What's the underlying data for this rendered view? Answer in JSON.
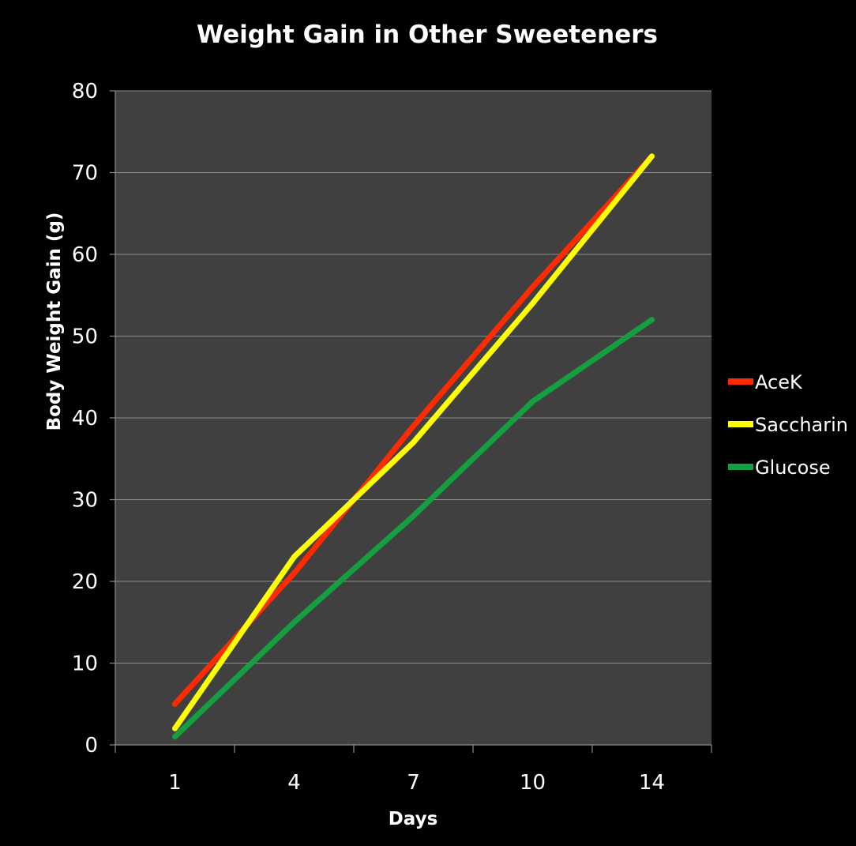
{
  "chart_data": {
    "type": "line",
    "title": "Weight Gain in Other Sweeteners",
    "xlabel": "Days",
    "ylabel": "Body Weight Gain (g)",
    "categories": [
      "1",
      "4",
      "7",
      "10",
      "14"
    ],
    "ylim": [
      0,
      80
    ],
    "yticks": [
      0,
      10,
      20,
      30,
      40,
      50,
      60,
      70,
      80
    ],
    "grid": true,
    "legend_position": "right",
    "series": [
      {
        "name": "AceK",
        "color": "#ff2a00",
        "values": [
          5,
          21,
          39,
          56,
          72
        ]
      },
      {
        "name": "Saccharin",
        "color": "#ffff00",
        "values": [
          2,
          23,
          37,
          54,
          72
        ]
      },
      {
        "name": "Glucose",
        "color": "#14a040",
        "values": [
          1,
          15,
          28,
          42,
          52
        ]
      }
    ],
    "colors": {
      "page_background": "#000000",
      "plot_background": "#404040",
      "gridline": "#8c8c8c",
      "text": "#ffffff"
    }
  }
}
